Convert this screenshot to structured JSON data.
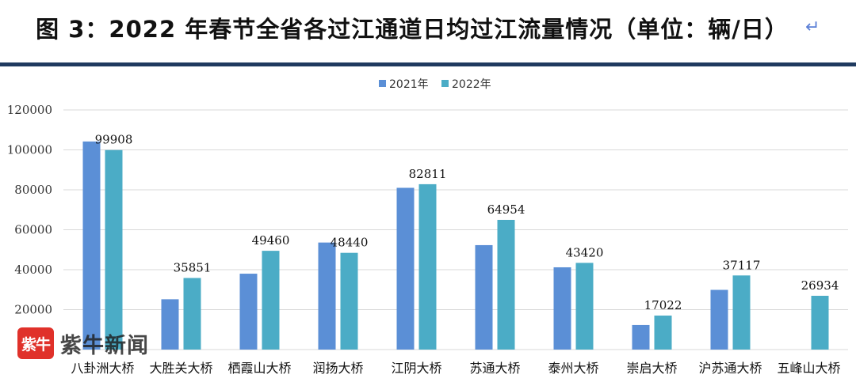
{
  "chart_data": {
    "type": "bar",
    "title": "图 3：2022 年春节全省各过江通道日均过江流量情况（单位：辆/日）",
    "categories": [
      "八卦洲大桥",
      "大胜关大桥",
      "栖霞山大桥",
      "润扬大桥",
      "江阴大桥",
      "苏通大桥",
      "泰州大桥",
      "崇启大桥",
      "沪苏通大桥",
      "五峰山大桥"
    ],
    "series": [
      {
        "name": "2021年",
        "color": "#5b8fd6",
        "values": [
          104200,
          25200,
          38000,
          53600,
          81000,
          52300,
          41200,
          12300,
          29900,
          null
        ]
      },
      {
        "name": "2022年",
        "color": "#4bacc6",
        "values": [
          99908,
          35851,
          49460,
          48440,
          82811,
          64954,
          43420,
          17022,
          37117,
          26934
        ],
        "labels": [
          "99908",
          "35851",
          "49460",
          "48440",
          "82811",
          "64954",
          "43420",
          "17022",
          "37117",
          "26934"
        ]
      }
    ],
    "ylim": [
      0,
      120000
    ],
    "yticks": [
      "20000",
      "40000",
      "60000",
      "80000",
      "100000",
      "120000"
    ],
    "grid": true,
    "legend": "top-center"
  },
  "watermark": {
    "logo": "紫牛",
    "text": "紫牛新闻"
  },
  "return_icon": "return-arrow-icon"
}
